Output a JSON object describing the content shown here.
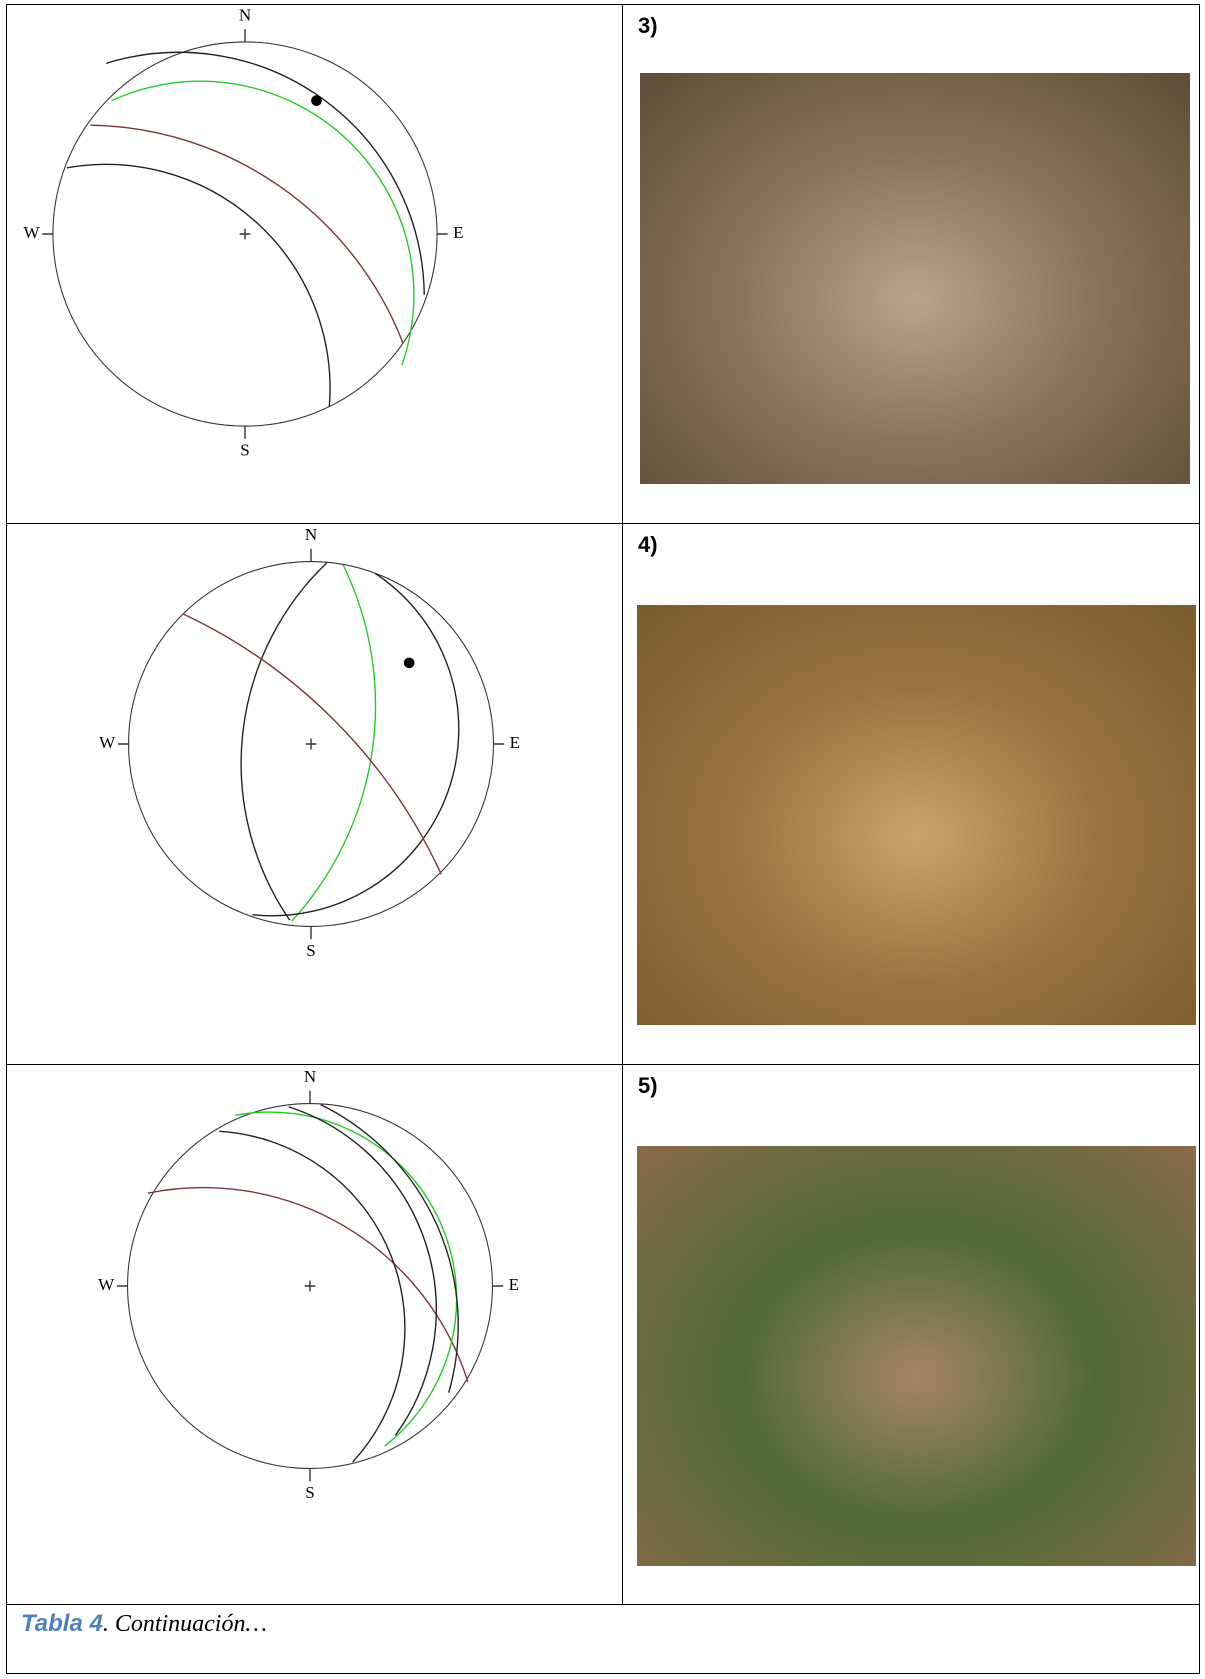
{
  "table": {
    "rows": [
      {
        "label": "3)",
        "directions": {
          "n": "N",
          "s": "S",
          "e": "E",
          "w": "W"
        }
      },
      {
        "label": "4)",
        "directions": {
          "n": "N",
          "s": "S",
          "e": "E",
          "w": "W"
        }
      },
      {
        "label": "5)",
        "directions": {
          "n": "N",
          "s": "S",
          "e": "E",
          "w": "W"
        }
      }
    ]
  },
  "caption": {
    "label": "Tabla 4",
    "text": ". Continuación…"
  }
}
